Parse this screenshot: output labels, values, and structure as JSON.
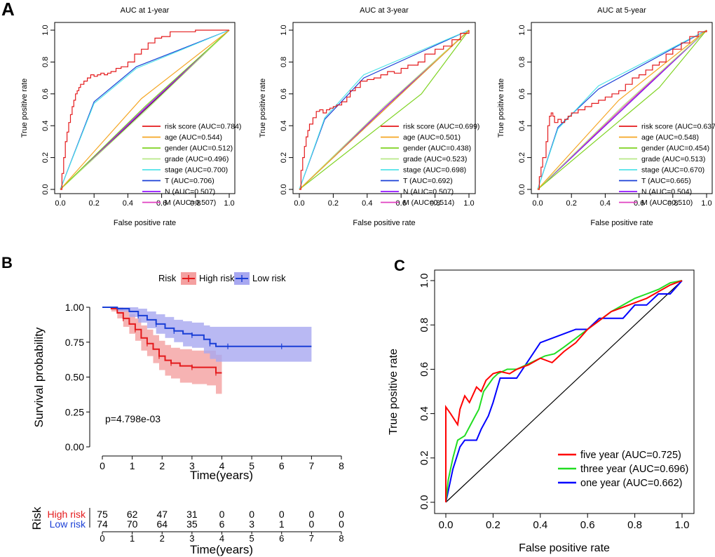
{
  "panel_labels": {
    "a": "A",
    "b": "B",
    "c": "C"
  },
  "colors": {
    "red": "#e41a1c",
    "orange": "#f5a623",
    "green": "#7ed321",
    "lime": "#b8e986",
    "cyan": "#50e3e8",
    "blue": "#1a3fd6",
    "purple": "#9013fe",
    "magenta": "#e040c0",
    "c_red": "#ff0000",
    "c_green": "#22dd22",
    "c_blue": "#0000ff",
    "band_red": "#f4a0a0",
    "band_blue": "#a8a8f0"
  },
  "chart_data": [
    {
      "id": "A1",
      "type": "line",
      "title": "AUC at 1-year",
      "xlabel": "False positive rate",
      "ylabel": "True positive rate",
      "xlim": [
        0,
        1
      ],
      "ylim": [
        0,
        1
      ],
      "xticks": [
        "0.0",
        "0.2",
        "0.4",
        "0.6",
        "0.8",
        "1.0"
      ],
      "yticks": [
        "0.0",
        "0.2",
        "0.4",
        "0.6",
        "0.8",
        "1.0"
      ],
      "legend": "bottom-right",
      "series": [
        {
          "name": "risk score (AUC=0.784)",
          "color": "red",
          "step": true,
          "x": [
            0,
            0.01,
            0.02,
            0.03,
            0.04,
            0.05,
            0.06,
            0.07,
            0.08,
            0.09,
            0.1,
            0.11,
            0.12,
            0.14,
            0.16,
            0.18,
            0.2,
            0.22,
            0.24,
            0.26,
            0.28,
            0.3,
            0.33,
            0.36,
            0.4,
            0.44,
            0.48,
            0.52,
            0.56,
            0.6,
            0.65,
            0.8,
            1.0
          ],
          "y": [
            0,
            0.1,
            0.2,
            0.3,
            0.36,
            0.42,
            0.47,
            0.52,
            0.56,
            0.6,
            0.62,
            0.64,
            0.66,
            0.68,
            0.7,
            0.72,
            0.71,
            0.72,
            0.73,
            0.72,
            0.73,
            0.74,
            0.76,
            0.77,
            0.8,
            0.85,
            0.88,
            0.92,
            0.95,
            0.96,
            0.99,
            1.0,
            1.0
          ]
        },
        {
          "name": "age (AUC=0.544)",
          "color": "orange",
          "x": [
            0,
            0.48,
            1
          ],
          "y": [
            0,
            0.57,
            1
          ]
        },
        {
          "name": "gender (AUC=0.512)",
          "color": "green",
          "x": [
            0,
            0.5,
            1
          ],
          "y": [
            0,
            0.52,
            1
          ]
        },
        {
          "name": "grade (AUC=0.496)",
          "color": "lime",
          "x": [
            0,
            0.5,
            1
          ],
          "y": [
            0,
            0.49,
            1
          ]
        },
        {
          "name": "stage (AUC=0.700)",
          "color": "cyan",
          "x": [
            0,
            0.2,
            0.45,
            1
          ],
          "y": [
            0,
            0.54,
            0.76,
            1
          ]
        },
        {
          "name": "T (AUC=0.706)",
          "color": "blue",
          "x": [
            0,
            0.2,
            0.45,
            1
          ],
          "y": [
            0,
            0.55,
            0.77,
            1
          ]
        },
        {
          "name": "N (AUC=0.507)",
          "color": "purple",
          "x": [
            0,
            0.5,
            1
          ],
          "y": [
            0,
            0.51,
            1
          ]
        },
        {
          "name": "M (AUC=0.507)",
          "color": "magenta",
          "x": [
            0,
            0.5,
            1
          ],
          "y": [
            0,
            0.505,
            1
          ]
        }
      ]
    },
    {
      "id": "A2",
      "type": "line",
      "title": "AUC at 3-year",
      "xlabel": "False positive rate",
      "ylabel": "True positive rate",
      "xlim": [
        0,
        1
      ],
      "ylim": [
        0,
        1
      ],
      "xticks": [
        "0.0",
        "0.2",
        "0.4",
        "0.6",
        "0.8",
        "1.0"
      ],
      "yticks": [
        "0.0",
        "0.2",
        "0.4",
        "0.6",
        "0.8",
        "1.0"
      ],
      "legend": "bottom-right",
      "series": [
        {
          "name": "risk score (AUC=0.699)",
          "color": "red",
          "step": true,
          "x": [
            0,
            0.01,
            0.02,
            0.03,
            0.04,
            0.05,
            0.06,
            0.08,
            0.1,
            0.12,
            0.14,
            0.16,
            0.18,
            0.2,
            0.22,
            0.25,
            0.28,
            0.3,
            0.33,
            0.36,
            0.4,
            0.44,
            0.48,
            0.52,
            0.56,
            0.6,
            0.64,
            0.7,
            0.74,
            0.8,
            0.85,
            0.9,
            0.95,
            1.0
          ],
          "y": [
            0,
            0.12,
            0.2,
            0.27,
            0.33,
            0.37,
            0.41,
            0.45,
            0.49,
            0.5,
            0.48,
            0.5,
            0.51,
            0.52,
            0.53,
            0.55,
            0.58,
            0.62,
            0.64,
            0.68,
            0.69,
            0.7,
            0.72,
            0.74,
            0.73,
            0.76,
            0.78,
            0.8,
            0.85,
            0.88,
            0.9,
            0.94,
            0.98,
            1.0
          ]
        },
        {
          "name": "age (AUC=0.501)",
          "color": "orange",
          "x": [
            0,
            0.5,
            1
          ],
          "y": [
            0,
            0.5,
            1
          ]
        },
        {
          "name": "gender (AUC=0.438)",
          "color": "green",
          "x": [
            0,
            0.72,
            1
          ],
          "y": [
            0,
            0.6,
            1
          ]
        },
        {
          "name": "grade (AUC=0.523)",
          "color": "lime",
          "x": [
            0,
            0.5,
            1
          ],
          "y": [
            0,
            0.52,
            1
          ]
        },
        {
          "name": "stage (AUC=0.698)",
          "color": "cyan",
          "x": [
            0,
            0.15,
            0.38,
            1
          ],
          "y": [
            0,
            0.45,
            0.72,
            1
          ]
        },
        {
          "name": "T (AUC=0.692)",
          "color": "blue",
          "x": [
            0,
            0.15,
            0.38,
            1
          ],
          "y": [
            0,
            0.44,
            0.7,
            1
          ]
        },
        {
          "name": "N (AUC=0.507)",
          "color": "purple",
          "x": [
            0,
            0.5,
            1
          ],
          "y": [
            0,
            0.51,
            1
          ]
        },
        {
          "name": "M (AUC=0.514)",
          "color": "magenta",
          "x": [
            0,
            0.5,
            1
          ],
          "y": [
            0,
            0.51,
            1
          ]
        }
      ]
    },
    {
      "id": "A3",
      "type": "line",
      "title": "AUC at 5-year",
      "xlabel": "False positive rate",
      "ylabel": "True positive rate",
      "xlim": [
        0,
        1
      ],
      "ylim": [
        0,
        1
      ],
      "xticks": [
        "0.0",
        "0.2",
        "0.4",
        "0.6",
        "0.8",
        "1.0"
      ],
      "yticks": [
        "0.0",
        "0.2",
        "0.4",
        "0.6",
        "0.8",
        "1.0"
      ],
      "legend": "bottom-right",
      "series": [
        {
          "name": "risk score (AUC=0.637)",
          "color": "red",
          "step": true,
          "x": [
            0,
            0.01,
            0.02,
            0.03,
            0.05,
            0.06,
            0.07,
            0.08,
            0.09,
            0.1,
            0.12,
            0.14,
            0.16,
            0.18,
            0.2,
            0.24,
            0.28,
            0.32,
            0.36,
            0.4,
            0.44,
            0.48,
            0.52,
            0.56,
            0.6,
            0.64,
            0.68,
            0.72,
            0.76,
            0.8,
            0.85,
            0.9,
            0.95,
            1.0
          ],
          "y": [
            0,
            0.08,
            0.14,
            0.2,
            0.3,
            0.4,
            0.46,
            0.48,
            0.46,
            0.42,
            0.44,
            0.42,
            0.44,
            0.46,
            0.48,
            0.5,
            0.52,
            0.54,
            0.56,
            0.58,
            0.6,
            0.62,
            0.66,
            0.7,
            0.72,
            0.75,
            0.78,
            0.8,
            0.85,
            0.88,
            0.92,
            0.96,
            0.99,
            1.0
          ]
        },
        {
          "name": "age (AUC=0.548)",
          "color": "orange",
          "x": [
            0,
            0.48,
            1
          ],
          "y": [
            0,
            0.56,
            1
          ]
        },
        {
          "name": "gender (AUC=0.454)",
          "color": "green",
          "x": [
            0,
            0.72,
            1
          ],
          "y": [
            0,
            0.64,
            1
          ]
        },
        {
          "name": "grade (AUC=0.513)",
          "color": "lime",
          "x": [
            0,
            0.5,
            1
          ],
          "y": [
            0,
            0.52,
            1
          ]
        },
        {
          "name": "stage (AUC=0.670)",
          "color": "cyan",
          "x": [
            0,
            0.12,
            0.36,
            1
          ],
          "y": [
            0,
            0.38,
            0.65,
            1
          ]
        },
        {
          "name": "T (AUC=0.665)",
          "color": "blue",
          "x": [
            0,
            0.12,
            0.36,
            1
          ],
          "y": [
            0,
            0.39,
            0.63,
            1
          ]
        },
        {
          "name": "N (AUC=0.504)",
          "color": "purple",
          "x": [
            0,
            0.5,
            1
          ],
          "y": [
            0,
            0.5,
            1
          ]
        },
        {
          "name": "M (AUC=0.510)",
          "color": "magenta",
          "x": [
            0,
            0.5,
            1
          ],
          "y": [
            0,
            0.51,
            1
          ]
        }
      ]
    },
    {
      "id": "B",
      "type": "line",
      "subtype": "kaplan-meier",
      "legend_title": "Risk",
      "legend": "top",
      "xlabel": "Time(years)",
      "ylabel": "Survival probability",
      "xlim": [
        0,
        8
      ],
      "ylim": [
        0,
        1
      ],
      "xticks": [
        "0",
        "1",
        "2",
        "3",
        "4",
        "5",
        "6",
        "7",
        "8"
      ],
      "yticks": [
        "0.00",
        "0.25",
        "0.50",
        "0.75",
        "1.00"
      ],
      "annotation": "p=4.798e-03",
      "series": [
        {
          "name": "High risk",
          "color": "red",
          "band": "band_red",
          "x": [
            0,
            0.3,
            0.5,
            0.7,
            0.9,
            1.1,
            1.3,
            1.5,
            1.7,
            1.9,
            2.1,
            2.3,
            2.6,
            3.0,
            3.5,
            3.8,
            4.0
          ],
          "y": [
            1.0,
            0.99,
            0.96,
            0.92,
            0.88,
            0.84,
            0.78,
            0.74,
            0.7,
            0.65,
            0.62,
            0.6,
            0.58,
            0.57,
            0.57,
            0.53,
            0.53
          ],
          "lower": [
            1.0,
            0.97,
            0.92,
            0.86,
            0.81,
            0.76,
            0.69,
            0.65,
            0.6,
            0.55,
            0.51,
            0.49,
            0.46,
            0.45,
            0.44,
            0.38,
            0.38
          ],
          "upper": [
            1.0,
            1.0,
            1.0,
            0.98,
            0.95,
            0.92,
            0.87,
            0.84,
            0.8,
            0.76,
            0.73,
            0.71,
            0.7,
            0.69,
            0.69,
            0.66,
            0.66
          ]
        },
        {
          "name": "Low risk",
          "color": "blue",
          "band": "band_blue",
          "x": [
            0,
            0.5,
            0.9,
            1.2,
            1.5,
            1.8,
            2.1,
            2.4,
            2.7,
            3.0,
            3.4,
            3.6,
            3.8,
            4.2,
            5.0,
            6.0,
            7.0
          ],
          "y": [
            1.0,
            0.99,
            0.97,
            0.94,
            0.91,
            0.88,
            0.85,
            0.83,
            0.81,
            0.8,
            0.77,
            0.74,
            0.72,
            0.72,
            0.72,
            0.72,
            0.72
          ],
          "lower": [
            1.0,
            0.97,
            0.93,
            0.89,
            0.85,
            0.81,
            0.78,
            0.75,
            0.72,
            0.71,
            0.67,
            0.63,
            0.61,
            0.61,
            0.61,
            0.61,
            0.61
          ],
          "upper": [
            1.0,
            1.0,
            1.0,
            0.99,
            0.97,
            0.95,
            0.93,
            0.91,
            0.9,
            0.89,
            0.87,
            0.86,
            0.86,
            0.86,
            0.86,
            0.86,
            0.86
          ]
        }
      ],
      "risk_table": {
        "title": "Risk",
        "xlabel": "Time(years)",
        "times": [
          "0",
          "1",
          "2",
          "3",
          "4",
          "5",
          "6",
          "7",
          "8"
        ],
        "rows": [
          {
            "label": "High risk",
            "color": "red",
            "values": [
              "75",
              "62",
              "47",
              "31",
              "0",
              "0",
              "0",
              "0",
              "0"
            ]
          },
          {
            "label": "Low risk",
            "color": "blue",
            "values": [
              "74",
              "70",
              "64",
              "35",
              "6",
              "3",
              "1",
              "0",
              "0"
            ]
          }
        ]
      }
    },
    {
      "id": "C",
      "type": "line",
      "xlabel": "False positive rate",
      "ylabel": "True positive rate",
      "xlim": [
        0,
        1
      ],
      "ylim": [
        0,
        1
      ],
      "xticks": [
        "0.0",
        "0.2",
        "0.4",
        "0.6",
        "0.8",
        "1.0"
      ],
      "yticks": [
        "0.0",
        "0.2",
        "0.4",
        "0.6",
        "0.8",
        "1.0"
      ],
      "legend": "bottom-right",
      "series": [
        {
          "name": "five year (AUC=0.725)",
          "color": "c_red",
          "x": [
            0,
            0.0,
            0.02,
            0.05,
            0.06,
            0.08,
            0.1,
            0.13,
            0.15,
            0.17,
            0.2,
            0.23,
            0.27,
            0.3,
            0.35,
            0.4,
            0.45,
            0.5,
            0.55,
            0.6,
            0.65,
            0.7,
            0.75,
            0.8,
            0.85,
            0.9,
            0.95,
            1.0
          ],
          "y": [
            0,
            0.43,
            0.4,
            0.35,
            0.42,
            0.48,
            0.45,
            0.52,
            0.5,
            0.55,
            0.58,
            0.59,
            0.58,
            0.6,
            0.62,
            0.65,
            0.63,
            0.68,
            0.72,
            0.78,
            0.82,
            0.86,
            0.88,
            0.9,
            0.92,
            0.95,
            0.98,
            1.0
          ]
        },
        {
          "name": "three year (AUC=0.696)",
          "color": "c_green",
          "x": [
            0,
            0.01,
            0.03,
            0.05,
            0.08,
            0.12,
            0.14,
            0.16,
            0.18,
            0.2,
            0.22,
            0.26,
            0.3,
            0.34,
            0.38,
            0.42,
            0.46,
            0.5,
            0.55,
            0.6,
            0.65,
            0.7,
            0.75,
            0.8,
            0.85,
            0.9,
            0.95,
            1.0
          ],
          "y": [
            0,
            0.1,
            0.2,
            0.28,
            0.3,
            0.38,
            0.42,
            0.5,
            0.53,
            0.56,
            0.58,
            0.6,
            0.6,
            0.62,
            0.64,
            0.66,
            0.67,
            0.7,
            0.74,
            0.78,
            0.82,
            0.86,
            0.89,
            0.92,
            0.94,
            0.96,
            0.99,
            1.0
          ]
        },
        {
          "name": "one year (AUC=0.662)",
          "color": "c_blue",
          "x": [
            0,
            0.01,
            0.03,
            0.06,
            0.08,
            0.13,
            0.15,
            0.18,
            0.2,
            0.23,
            0.3,
            0.4,
            0.5,
            0.55,
            0.6,
            0.65,
            0.7,
            0.75,
            0.8,
            0.85,
            0.9,
            0.95,
            1.0
          ],
          "y": [
            0,
            0.05,
            0.15,
            0.25,
            0.28,
            0.28,
            0.33,
            0.39,
            0.45,
            0.56,
            0.56,
            0.72,
            0.76,
            0.78,
            0.78,
            0.83,
            0.83,
            0.83,
            0.89,
            0.89,
            0.94,
            0.94,
            1.0
          ]
        }
      ]
    }
  ]
}
